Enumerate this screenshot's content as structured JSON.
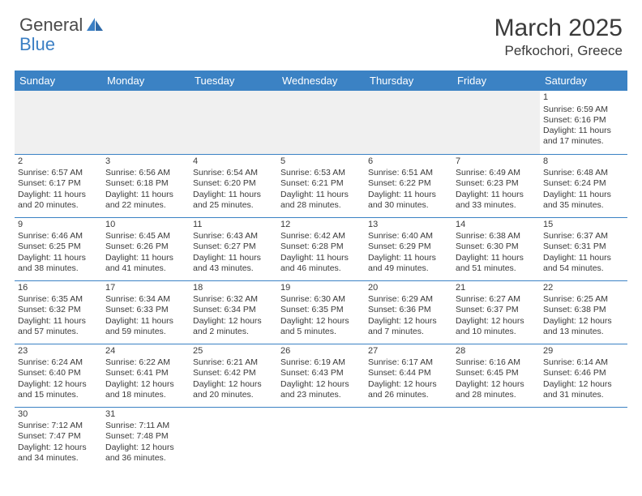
{
  "logo": {
    "text_general": "General",
    "text_blue": "Blue",
    "sail_color": "#3b7fc4"
  },
  "header": {
    "month_title": "March 2025",
    "location": "Pefkochori, Greece"
  },
  "colors": {
    "header_bg": "#3b82c4",
    "header_text": "#ffffff",
    "border": "#3b82c4",
    "text": "#3a3a3a",
    "empty_bg": "#f0f0f0",
    "page_bg": "#ffffff"
  },
  "day_header_fontsize": 13,
  "cell_fontsize": 10.5,
  "title_fontsize": 30,
  "location_fontsize": 17,
  "days": [
    "Sunday",
    "Monday",
    "Tuesday",
    "Wednesday",
    "Thursday",
    "Friday",
    "Saturday"
  ],
  "weeks": [
    [
      null,
      null,
      null,
      null,
      null,
      null,
      {
        "n": "1",
        "sunrise": "Sunrise: 6:59 AM",
        "sunset": "Sunset: 6:16 PM",
        "day1": "Daylight: 11 hours",
        "day2": "and 17 minutes."
      }
    ],
    [
      {
        "n": "2",
        "sunrise": "Sunrise: 6:57 AM",
        "sunset": "Sunset: 6:17 PM",
        "day1": "Daylight: 11 hours",
        "day2": "and 20 minutes."
      },
      {
        "n": "3",
        "sunrise": "Sunrise: 6:56 AM",
        "sunset": "Sunset: 6:18 PM",
        "day1": "Daylight: 11 hours",
        "day2": "and 22 minutes."
      },
      {
        "n": "4",
        "sunrise": "Sunrise: 6:54 AM",
        "sunset": "Sunset: 6:20 PM",
        "day1": "Daylight: 11 hours",
        "day2": "and 25 minutes."
      },
      {
        "n": "5",
        "sunrise": "Sunrise: 6:53 AM",
        "sunset": "Sunset: 6:21 PM",
        "day1": "Daylight: 11 hours",
        "day2": "and 28 minutes."
      },
      {
        "n": "6",
        "sunrise": "Sunrise: 6:51 AM",
        "sunset": "Sunset: 6:22 PM",
        "day1": "Daylight: 11 hours",
        "day2": "and 30 minutes."
      },
      {
        "n": "7",
        "sunrise": "Sunrise: 6:49 AM",
        "sunset": "Sunset: 6:23 PM",
        "day1": "Daylight: 11 hours",
        "day2": "and 33 minutes."
      },
      {
        "n": "8",
        "sunrise": "Sunrise: 6:48 AM",
        "sunset": "Sunset: 6:24 PM",
        "day1": "Daylight: 11 hours",
        "day2": "and 35 minutes."
      }
    ],
    [
      {
        "n": "9",
        "sunrise": "Sunrise: 6:46 AM",
        "sunset": "Sunset: 6:25 PM",
        "day1": "Daylight: 11 hours",
        "day2": "and 38 minutes."
      },
      {
        "n": "10",
        "sunrise": "Sunrise: 6:45 AM",
        "sunset": "Sunset: 6:26 PM",
        "day1": "Daylight: 11 hours",
        "day2": "and 41 minutes."
      },
      {
        "n": "11",
        "sunrise": "Sunrise: 6:43 AM",
        "sunset": "Sunset: 6:27 PM",
        "day1": "Daylight: 11 hours",
        "day2": "and 43 minutes."
      },
      {
        "n": "12",
        "sunrise": "Sunrise: 6:42 AM",
        "sunset": "Sunset: 6:28 PM",
        "day1": "Daylight: 11 hours",
        "day2": "and 46 minutes."
      },
      {
        "n": "13",
        "sunrise": "Sunrise: 6:40 AM",
        "sunset": "Sunset: 6:29 PM",
        "day1": "Daylight: 11 hours",
        "day2": "and 49 minutes."
      },
      {
        "n": "14",
        "sunrise": "Sunrise: 6:38 AM",
        "sunset": "Sunset: 6:30 PM",
        "day1": "Daylight: 11 hours",
        "day2": "and 51 minutes."
      },
      {
        "n": "15",
        "sunrise": "Sunrise: 6:37 AM",
        "sunset": "Sunset: 6:31 PM",
        "day1": "Daylight: 11 hours",
        "day2": "and 54 minutes."
      }
    ],
    [
      {
        "n": "16",
        "sunrise": "Sunrise: 6:35 AM",
        "sunset": "Sunset: 6:32 PM",
        "day1": "Daylight: 11 hours",
        "day2": "and 57 minutes."
      },
      {
        "n": "17",
        "sunrise": "Sunrise: 6:34 AM",
        "sunset": "Sunset: 6:33 PM",
        "day1": "Daylight: 11 hours",
        "day2": "and 59 minutes."
      },
      {
        "n": "18",
        "sunrise": "Sunrise: 6:32 AM",
        "sunset": "Sunset: 6:34 PM",
        "day1": "Daylight: 12 hours",
        "day2": "and 2 minutes."
      },
      {
        "n": "19",
        "sunrise": "Sunrise: 6:30 AM",
        "sunset": "Sunset: 6:35 PM",
        "day1": "Daylight: 12 hours",
        "day2": "and 5 minutes."
      },
      {
        "n": "20",
        "sunrise": "Sunrise: 6:29 AM",
        "sunset": "Sunset: 6:36 PM",
        "day1": "Daylight: 12 hours",
        "day2": "and 7 minutes."
      },
      {
        "n": "21",
        "sunrise": "Sunrise: 6:27 AM",
        "sunset": "Sunset: 6:37 PM",
        "day1": "Daylight: 12 hours",
        "day2": "and 10 minutes."
      },
      {
        "n": "22",
        "sunrise": "Sunrise: 6:25 AM",
        "sunset": "Sunset: 6:38 PM",
        "day1": "Daylight: 12 hours",
        "day2": "and 13 minutes."
      }
    ],
    [
      {
        "n": "23",
        "sunrise": "Sunrise: 6:24 AM",
        "sunset": "Sunset: 6:40 PM",
        "day1": "Daylight: 12 hours",
        "day2": "and 15 minutes."
      },
      {
        "n": "24",
        "sunrise": "Sunrise: 6:22 AM",
        "sunset": "Sunset: 6:41 PM",
        "day1": "Daylight: 12 hours",
        "day2": "and 18 minutes."
      },
      {
        "n": "25",
        "sunrise": "Sunrise: 6:21 AM",
        "sunset": "Sunset: 6:42 PM",
        "day1": "Daylight: 12 hours",
        "day2": "and 20 minutes."
      },
      {
        "n": "26",
        "sunrise": "Sunrise: 6:19 AM",
        "sunset": "Sunset: 6:43 PM",
        "day1": "Daylight: 12 hours",
        "day2": "and 23 minutes."
      },
      {
        "n": "27",
        "sunrise": "Sunrise: 6:17 AM",
        "sunset": "Sunset: 6:44 PM",
        "day1": "Daylight: 12 hours",
        "day2": "and 26 minutes."
      },
      {
        "n": "28",
        "sunrise": "Sunrise: 6:16 AM",
        "sunset": "Sunset: 6:45 PM",
        "day1": "Daylight: 12 hours",
        "day2": "and 28 minutes."
      },
      {
        "n": "29",
        "sunrise": "Sunrise: 6:14 AM",
        "sunset": "Sunset: 6:46 PM",
        "day1": "Daylight: 12 hours",
        "day2": "and 31 minutes."
      }
    ],
    [
      {
        "n": "30",
        "sunrise": "Sunrise: 7:12 AM",
        "sunset": "Sunset: 7:47 PM",
        "day1": "Daylight: 12 hours",
        "day2": "and 34 minutes."
      },
      {
        "n": "31",
        "sunrise": "Sunrise: 7:11 AM",
        "sunset": "Sunset: 7:48 PM",
        "day1": "Daylight: 12 hours",
        "day2": "and 36 minutes."
      },
      null,
      null,
      null,
      null,
      null
    ]
  ]
}
